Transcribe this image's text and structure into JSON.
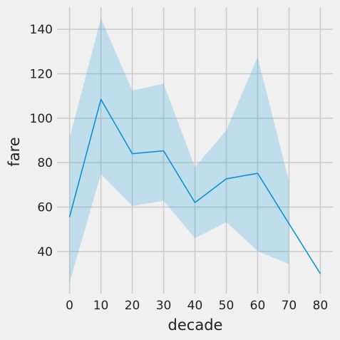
{
  "chart_data": {
    "type": "line",
    "xlabel": "decade",
    "ylabel": "fare",
    "x": [
      0,
      10,
      20,
      30,
      40,
      50,
      60,
      70,
      80
    ],
    "series": [
      {
        "values": [
          55.5,
          108.5,
          84.0,
          85.3,
          62.0,
          72.7,
          75.2,
          52.5,
          30.0
        ],
        "ci_low": [
          26.0,
          74.8,
          60.5,
          62.8,
          46.0,
          53.2,
          40.2,
          34.3,
          null
        ],
        "ci_high": [
          91.0,
          145.0,
          112.5,
          115.5,
          78.0,
          94.5,
          127.5,
          71.5,
          null
        ],
        "color": "#008fd5",
        "band_color": "#008fd5"
      }
    ],
    "xticks": [
      0,
      10,
      20,
      30,
      40,
      50,
      60,
      70,
      80
    ],
    "yticks": [
      40,
      60,
      80,
      100,
      120,
      140
    ],
    "xlim": [
      -4,
      84
    ],
    "ylim": [
      21,
      150
    ],
    "grid": true,
    "background": "#f0f0f0"
  }
}
